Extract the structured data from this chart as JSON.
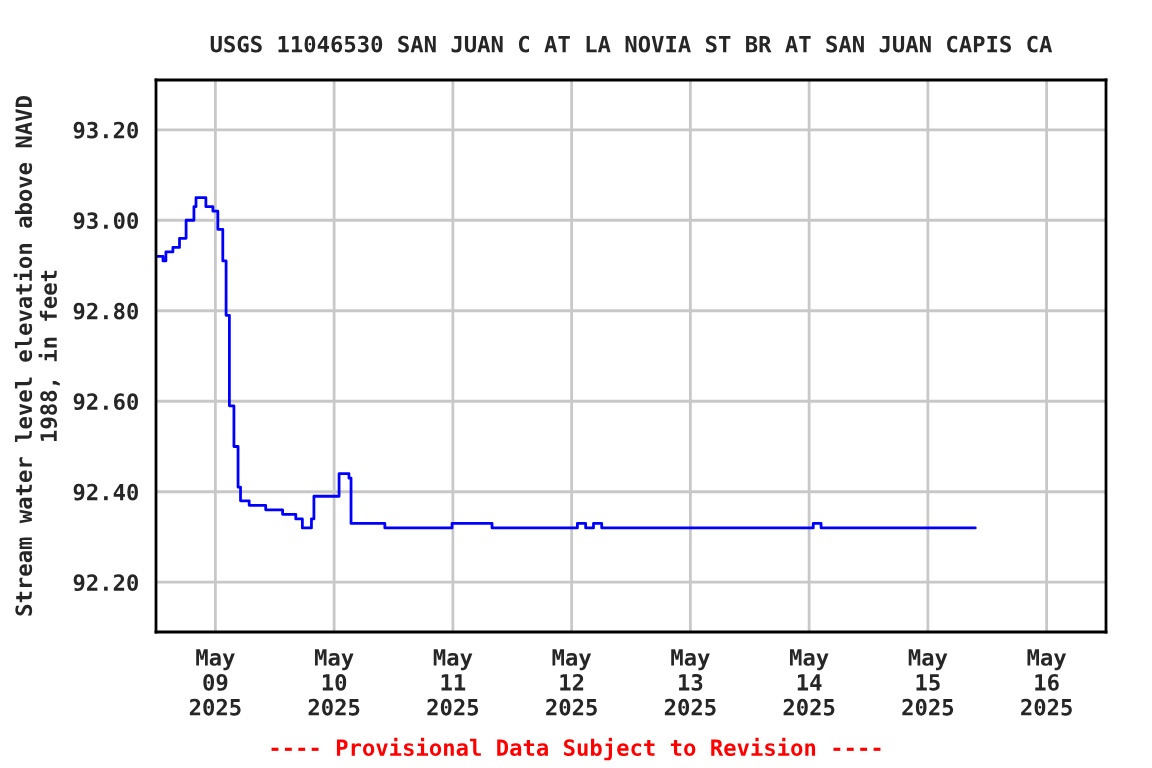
{
  "chart_data": {
    "type": "step",
    "title": "USGS 11046530 SAN JUAN C AT LA NOVIA ST BR AT SAN JUAN CAPIS CA",
    "ylabel": "Stream water level elevation above NAVD\n1988, in feet",
    "annotations": [
      "---- Provisional Data Subject to Revision ----"
    ],
    "x": [
      "2025-05-08T12:00",
      "2025-05-08T13:25",
      "2025-05-08T14:00",
      "2025-05-08T15:25",
      "2025-05-08T16:45",
      "2025-05-08T18:05",
      "2025-05-08T19:40",
      "2025-05-08T20:05",
      "2025-05-08T22:05",
      "2025-05-08T23:30",
      "2025-05-09T00:30",
      "2025-05-09T01:30",
      "2025-05-09T02:10",
      "2025-05-09T02:50",
      "2025-05-09T03:45",
      "2025-05-09T04:35",
      "2025-05-09T05:05",
      "2025-05-09T06:50",
      "2025-05-09T10:10",
      "2025-05-09T13:35",
      "2025-05-09T16:15",
      "2025-05-09T17:35",
      "2025-05-09T19:25",
      "2025-05-09T19:55",
      "2025-05-10T00:45",
      "2025-05-10T01:00",
      "2025-05-10T03:00",
      "2025-05-10T03:25",
      "2025-05-10T09:45",
      "2025-05-10T10:15",
      "2025-05-10T23:35",
      "2025-05-10T23:50",
      "2025-05-11T07:40",
      "2025-05-11T07:55",
      "2025-05-12T01:00",
      "2025-05-12T01:10",
      "2025-05-12T02:35",
      "2025-05-12T02:50",
      "2025-05-12T04:15",
      "2025-05-12T04:25",
      "2025-05-12T05:50",
      "2025-05-12T06:05",
      "2025-05-14T00:35",
      "2025-05-14T00:50",
      "2025-05-14T02:15",
      "2025-05-14T02:25",
      "2025-05-15T09:35"
    ],
    "series": [
      {
        "color": "#0000ff",
        "values": [
          92.92,
          92.91,
          92.93,
          92.94,
          92.96,
          93.0,
          93.03,
          93.05,
          93.03,
          93.02,
          92.98,
          92.91,
          92.79,
          92.59,
          92.5,
          92.41,
          92.38,
          92.37,
          92.36,
          92.35,
          92.34,
          92.32,
          92.34,
          92.39,
          92.39,
          92.44,
          92.43,
          92.33,
          92.33,
          92.32,
          92.32,
          92.33,
          92.33,
          92.32,
          92.32,
          92.33,
          92.33,
          92.32,
          92.32,
          92.33,
          92.33,
          92.32,
          92.32,
          92.33,
          92.33,
          92.32,
          92.32
        ]
      }
    ],
    "xlim": [
      "2025-05-08T12:00",
      "2025-05-16T12:00"
    ],
    "xticks": [
      {
        "value": "2025-05-09",
        "label": "May\n09\n2025"
      },
      {
        "value": "2025-05-10",
        "label": "May\n10\n2025"
      },
      {
        "value": "2025-05-11",
        "label": "May\n11\n2025"
      },
      {
        "value": "2025-05-12",
        "label": "May\n12\n2025"
      },
      {
        "value": "2025-05-13",
        "label": "May\n13\n2025"
      },
      {
        "value": "2025-05-14",
        "label": "May\n14\n2025"
      },
      {
        "value": "2025-05-15",
        "label": "May\n15\n2025"
      },
      {
        "value": "2025-05-16",
        "label": "May\n16\n2025"
      }
    ],
    "ylim": [
      92.09,
      93.31
    ],
    "yticks": [
      {
        "value": 92.2,
        "label": "92.20"
      },
      {
        "value": 92.4,
        "label": "92.40"
      },
      {
        "value": 92.6,
        "label": "92.60"
      },
      {
        "value": 92.8,
        "label": "92.80"
      },
      {
        "value": 93.0,
        "label": "93.00"
      },
      {
        "value": 93.2,
        "label": "93.20"
      }
    ],
    "grid": true
  }
}
